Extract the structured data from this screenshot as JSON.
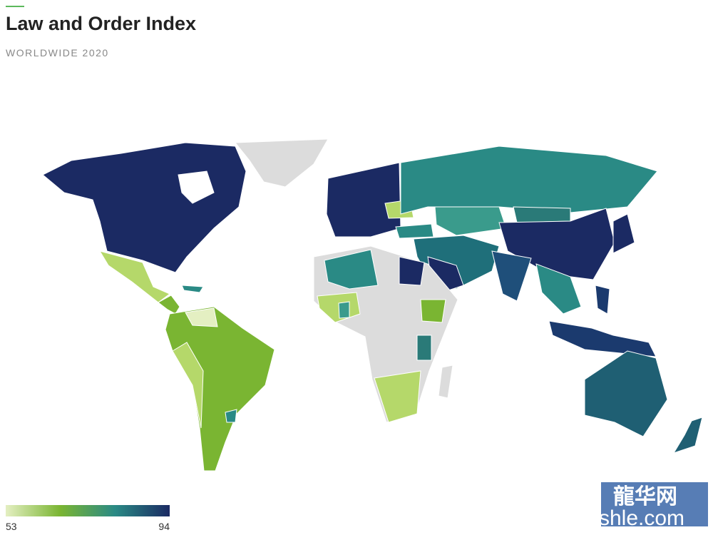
{
  "header": {
    "title": "Law and Order Index",
    "subtitle": "WORLDWIDE 2020"
  },
  "legend": {
    "min": 53,
    "max": 94,
    "colors": [
      "#e4efc2",
      "#7ab532",
      "#2a8a85",
      "#1b2a63"
    ]
  },
  "watermark": {
    "logo": "龍华网",
    "site": "shle.com"
  }
}
